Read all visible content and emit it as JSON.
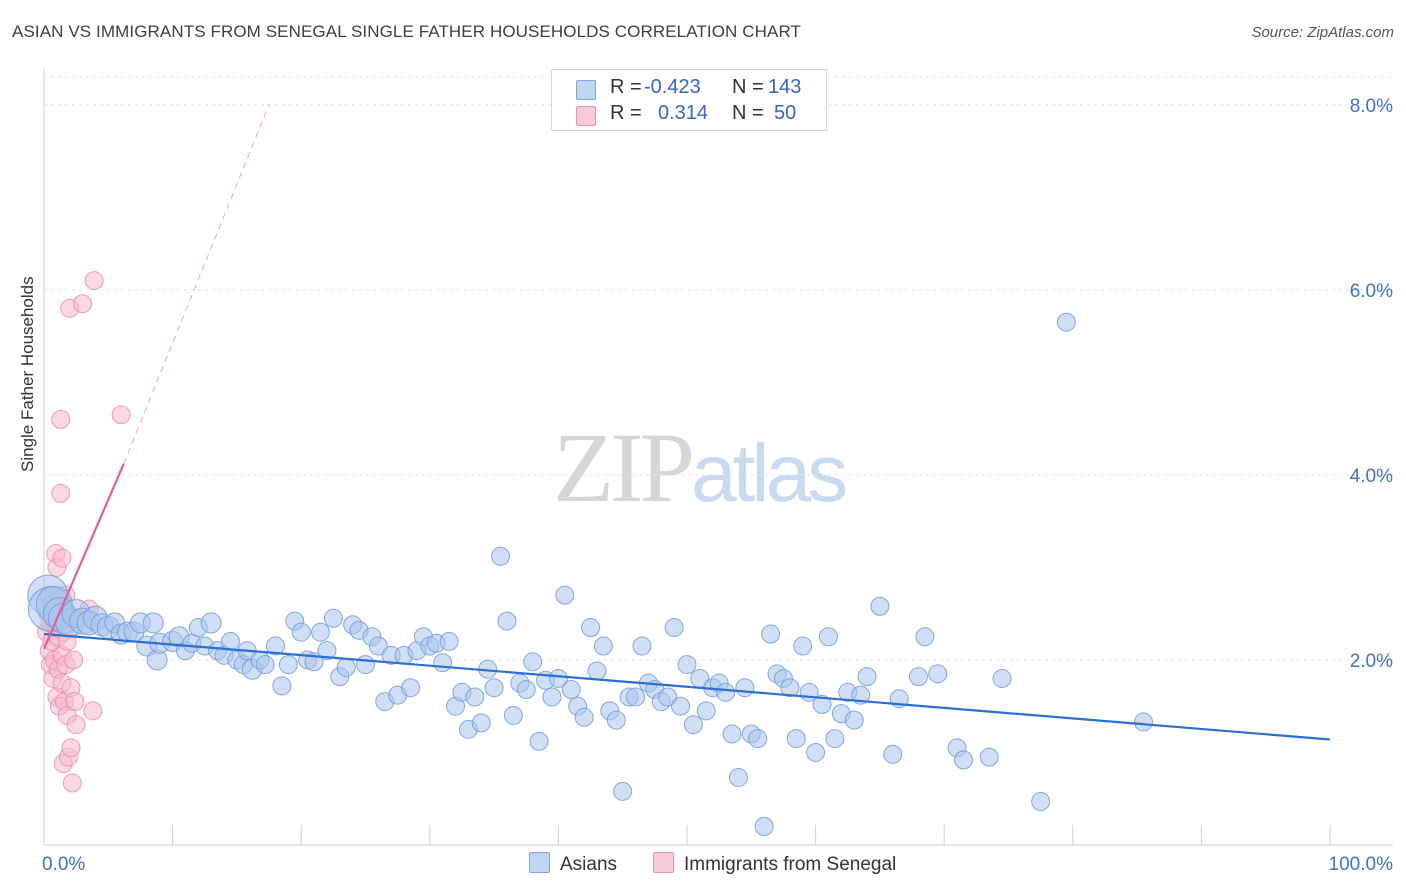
{
  "header": {
    "title": "ASIAN VS IMMIGRANTS FROM SENEGAL SINGLE FATHER HOUSEHOLDS CORRELATION CHART",
    "source": "Source: ZipAtlas.com"
  },
  "watermark": {
    "zip": "ZIP",
    "atlas": "atlas"
  },
  "legend": {
    "rows": [
      {
        "r_label": "R =",
        "r_value": "-0.423",
        "n_label": "N =",
        "n_value": "143"
      },
      {
        "r_label": "R =",
        "r_value": "0.314",
        "n_label": "N =",
        "n_value": "50"
      }
    ]
  },
  "bottom_legend": {
    "asians": "Asians",
    "senegal": "Immigrants from Senegal"
  },
  "colors": {
    "asian_fill": "#a9c4ee",
    "asian_stroke": "#6f9bdc",
    "asian_line": "#2a6fd6",
    "senegal_fill": "#f7b9cc",
    "senegal_stroke": "#ec86a6",
    "senegal_line": "#e4608c",
    "tick_label": "#3d73c9",
    "grid": "#e2e2e2"
  },
  "chart_data": {
    "type": "scatter",
    "title": "ASIAN VS IMMIGRANTS FROM SENEGAL SINGLE FATHER HOUSEHOLDS CORRELATION CHART",
    "xlabel": "",
    "ylabel": "Single Father Households",
    "xlim": [
      0,
      100
    ],
    "ylim": [
      0,
      8.3
    ],
    "y_ticks": [
      2,
      4,
      6,
      8
    ],
    "y_tick_labels": [
      "2.0%",
      "4.0%",
      "6.0%",
      "8.0%"
    ],
    "x_tick_labels": [
      "0.0%",
      "100.0%"
    ],
    "grid": true,
    "legend_position": "top-center",
    "series": [
      {
        "name": "Asians",
        "r": -0.423,
        "n": 143,
        "trend": {
          "x": [
            0,
            100
          ],
          "y": [
            2.28,
            1.14
          ]
        },
        "points": [
          [
            0.3,
            2.7,
            20
          ],
          [
            0.5,
            2.55,
            22
          ],
          [
            0.8,
            2.6,
            18
          ],
          [
            1.2,
            2.5,
            16
          ],
          [
            1.5,
            2.45,
            15
          ],
          [
            2.0,
            2.4,
            14
          ],
          [
            2.5,
            2.5,
            14
          ],
          [
            3.0,
            2.42,
            13
          ],
          [
            3.5,
            2.4,
            12
          ],
          [
            4.0,
            2.45,
            12
          ],
          [
            4.5,
            2.38,
            11
          ],
          [
            5.0,
            2.35,
            11
          ],
          [
            5.5,
            2.4,
            10
          ],
          [
            6.0,
            2.28,
            10
          ],
          [
            6.5,
            2.3,
            10
          ],
          [
            7.0,
            2.3,
            10
          ],
          [
            7.5,
            2.4,
            10
          ],
          [
            8.0,
            2.15,
            10
          ],
          [
            8.5,
            2.4,
            10
          ],
          [
            8.8,
            2.0,
            10
          ],
          [
            9.0,
            2.18,
            10
          ],
          [
            10.0,
            2.2,
            10
          ],
          [
            10.5,
            2.25,
            10
          ],
          [
            11.0,
            2.1,
            9
          ],
          [
            11.5,
            2.18,
            9
          ],
          [
            12.0,
            2.35,
            9
          ],
          [
            12.5,
            2.15,
            9
          ],
          [
            13.0,
            2.4,
            10
          ],
          [
            13.5,
            2.1,
            9
          ],
          [
            14.0,
            2.05,
            9
          ],
          [
            14.5,
            2.2,
            9
          ],
          [
            15.0,
            2.0,
            9
          ],
          [
            15.5,
            1.95,
            9
          ],
          [
            15.8,
            2.1,
            9
          ],
          [
            16.2,
            1.9,
            10
          ],
          [
            16.8,
            2.0,
            9
          ],
          [
            17.2,
            1.95,
            9
          ],
          [
            18.0,
            2.15,
            9
          ],
          [
            18.5,
            1.72,
            9
          ],
          [
            19.0,
            1.95,
            9
          ],
          [
            19.5,
            2.42,
            9
          ],
          [
            20.0,
            2.3,
            9
          ],
          [
            20.5,
            2.0,
            9
          ],
          [
            21.0,
            1.98,
            9
          ],
          [
            21.5,
            2.3,
            9
          ],
          [
            22.0,
            2.1,
            9
          ],
          [
            22.5,
            2.45,
            9
          ],
          [
            23.0,
            1.82,
            9
          ],
          [
            23.5,
            1.92,
            9
          ],
          [
            24.0,
            2.38,
            9
          ],
          [
            24.5,
            2.32,
            9
          ],
          [
            25.0,
            1.95,
            9
          ],
          [
            25.5,
            2.25,
            9
          ],
          [
            26.0,
            2.15,
            9
          ],
          [
            26.5,
            1.55,
            9
          ],
          [
            27.0,
            2.05,
            9
          ],
          [
            27.5,
            1.62,
            9
          ],
          [
            28.0,
            2.05,
            9
          ],
          [
            28.5,
            1.7,
            9
          ],
          [
            29.0,
            2.1,
            9
          ],
          [
            29.5,
            2.25,
            9
          ],
          [
            30.0,
            2.15,
            9
          ],
          [
            30.5,
            2.18,
            9
          ],
          [
            31.0,
            1.97,
            9
          ],
          [
            31.5,
            2.2,
            9
          ],
          [
            32.0,
            1.5,
            9
          ],
          [
            32.5,
            1.65,
            9
          ],
          [
            33.0,
            1.25,
            9
          ],
          [
            33.5,
            1.6,
            9
          ],
          [
            34.0,
            1.32,
            9
          ],
          [
            34.5,
            1.9,
            9
          ],
          [
            35.0,
            1.7,
            9
          ],
          [
            35.5,
            3.12,
            9
          ],
          [
            36.0,
            2.42,
            9
          ],
          [
            36.5,
            1.4,
            9
          ],
          [
            37.0,
            1.75,
            9
          ],
          [
            37.5,
            1.68,
            9
          ],
          [
            38.0,
            1.98,
            9
          ],
          [
            38.5,
            1.12,
            9
          ],
          [
            39.0,
            1.78,
            9
          ],
          [
            39.5,
            1.6,
            9
          ],
          [
            40.0,
            1.8,
            9
          ],
          [
            40.5,
            2.7,
            9
          ],
          [
            41.0,
            1.68,
            9
          ],
          [
            41.5,
            1.5,
            9
          ],
          [
            42.0,
            1.38,
            9
          ],
          [
            42.5,
            2.35,
            9
          ],
          [
            43.0,
            1.88,
            9
          ],
          [
            43.5,
            2.15,
            9
          ],
          [
            44.0,
            1.45,
            9
          ],
          [
            44.5,
            1.35,
            9
          ],
          [
            45.0,
            0.58,
            9
          ],
          [
            45.5,
            1.6,
            9
          ],
          [
            46.0,
            1.6,
            9
          ],
          [
            46.5,
            2.15,
            9
          ],
          [
            47.0,
            1.75,
            9
          ],
          [
            47.5,
            1.68,
            9
          ],
          [
            48.0,
            1.55,
            9
          ],
          [
            48.5,
            1.6,
            9
          ],
          [
            49.0,
            2.35,
            9
          ],
          [
            49.5,
            1.5,
            9
          ],
          [
            50.0,
            1.95,
            9
          ],
          [
            50.5,
            1.3,
            9
          ],
          [
            51.0,
            1.8,
            9
          ],
          [
            51.5,
            1.45,
            9
          ],
          [
            52.0,
            1.7,
            9
          ],
          [
            52.5,
            1.75,
            9
          ],
          [
            53.0,
            1.65,
            9
          ],
          [
            53.5,
            1.2,
            9
          ],
          [
            54.0,
            0.73,
            9
          ],
          [
            54.5,
            1.7,
            9
          ],
          [
            55.0,
            1.2,
            9
          ],
          [
            55.5,
            1.15,
            9
          ],
          [
            56.0,
            0.2,
            9
          ],
          [
            56.5,
            2.28,
            9
          ],
          [
            57.0,
            1.85,
            9
          ],
          [
            57.5,
            1.8,
            9
          ],
          [
            58.0,
            1.7,
            9
          ],
          [
            58.5,
            1.15,
            9
          ],
          [
            59.0,
            2.15,
            9
          ],
          [
            59.5,
            1.65,
            9
          ],
          [
            60.0,
            1.0,
            9
          ],
          [
            60.5,
            1.52,
            9
          ],
          [
            61.0,
            2.25,
            9
          ],
          [
            61.5,
            1.15,
            9
          ],
          [
            62.0,
            1.42,
            9
          ],
          [
            62.5,
            1.65,
            9
          ],
          [
            63.0,
            1.35,
            9
          ],
          [
            63.5,
            1.62,
            9
          ],
          [
            64.0,
            1.82,
            9
          ],
          [
            65.0,
            2.58,
            9
          ],
          [
            66.0,
            0.98,
            9
          ],
          [
            66.5,
            1.58,
            9
          ],
          [
            68.0,
            1.82,
            9
          ],
          [
            68.5,
            2.25,
            9
          ],
          [
            69.5,
            1.85,
            9
          ],
          [
            71.0,
            1.05,
            9
          ],
          [
            71.5,
            0.92,
            9
          ],
          [
            73.5,
            0.95,
            9
          ],
          [
            74.5,
            1.8,
            9
          ],
          [
            77.5,
            0.47,
            9
          ],
          [
            79.5,
            5.65,
            9
          ],
          [
            85.5,
            1.33,
            9
          ]
        ]
      },
      {
        "name": "Immigrants from Senegal",
        "r": 0.314,
        "n": 50,
        "trend": {
          "x": [
            0,
            6.2
          ],
          "y": [
            2.12,
            4.12
          ],
          "dashed_to": [
            17.5,
            8.0
          ]
        },
        "points": [
          [
            0.2,
            2.3,
            9
          ],
          [
            0.3,
            2.5,
            9
          ],
          [
            0.4,
            2.7,
            9
          ],
          [
            0.4,
            2.1,
            9
          ],
          [
            0.5,
            2.4,
            9
          ],
          [
            0.5,
            1.95,
            9
          ],
          [
            0.6,
            2.6,
            9
          ],
          [
            0.6,
            2.2,
            9
          ],
          [
            0.7,
            2.45,
            9
          ],
          [
            0.7,
            1.8,
            9
          ],
          [
            0.8,
            2.0,
            9
          ],
          [
            0.8,
            2.55,
            9
          ],
          [
            0.9,
            3.15,
            9
          ],
          [
            0.9,
            2.35,
            9
          ],
          [
            1.0,
            2.5,
            9
          ],
          [
            1.0,
            1.6,
            9
          ],
          [
            1.0,
            3.0,
            9
          ],
          [
            1.1,
            2.25,
            9
          ],
          [
            1.1,
            1.9,
            9
          ],
          [
            1.2,
            2.65,
            9
          ],
          [
            1.2,
            1.5,
            9
          ],
          [
            1.3,
            2.4,
            9
          ],
          [
            1.3,
            4.6,
            9
          ],
          [
            1.3,
            3.8,
            9
          ],
          [
            1.4,
            2.05,
            9
          ],
          [
            1.4,
            1.75,
            9
          ],
          [
            1.4,
            3.1,
            9
          ],
          [
            1.5,
            2.3,
            9
          ],
          [
            1.5,
            0.88,
            9
          ],
          [
            1.6,
            2.5,
            9
          ],
          [
            1.6,
            1.55,
            9
          ],
          [
            1.7,
            1.95,
            9
          ],
          [
            1.7,
            2.7,
            9
          ],
          [
            1.8,
            2.2,
            9
          ],
          [
            1.8,
            1.4,
            9
          ],
          [
            1.9,
            0.95,
            9
          ],
          [
            2.0,
            2.35,
            9
          ],
          [
            2.0,
            5.8,
            9
          ],
          [
            2.1,
            1.05,
            9
          ],
          [
            2.1,
            1.7,
            9
          ],
          [
            2.2,
            0.67,
            9
          ],
          [
            2.3,
            2.0,
            9
          ],
          [
            2.4,
            1.55,
            9
          ],
          [
            2.5,
            1.3,
            9
          ],
          [
            2.6,
            2.45,
            9
          ],
          [
            3.0,
            5.85,
            9
          ],
          [
            3.5,
            2.55,
            9
          ],
          [
            3.8,
            1.45,
            9
          ],
          [
            3.9,
            6.1,
            9
          ],
          [
            6.0,
            4.65,
            9
          ]
        ]
      }
    ]
  }
}
